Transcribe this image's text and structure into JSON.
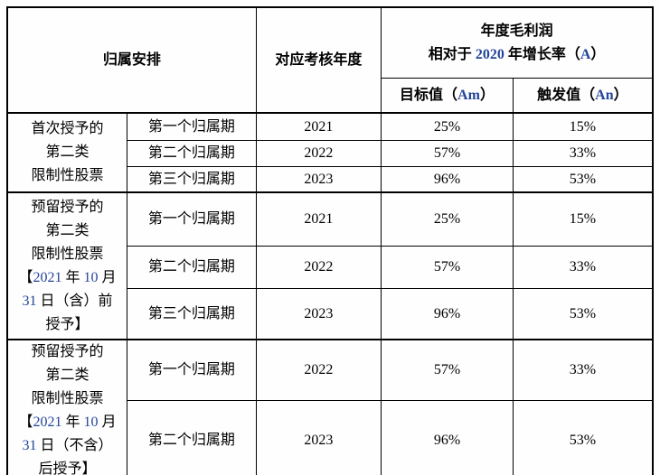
{
  "colors": {
    "text": "#000000",
    "accent_blue": "#24459A",
    "border": "#000000",
    "background": "#fefefe"
  },
  "table": {
    "header": {
      "vesting_arrangement": "归属安排",
      "assessment_year": "对应考核年度",
      "profit_line1": "年度毛利润",
      "profit_line2": [
        {
          "t": "相对于 "
        },
        {
          "t": "2020",
          "b": true
        },
        {
          "t": " 年增长率（"
        },
        {
          "t": "A",
          "b": true
        },
        {
          "t": "）"
        }
      ],
      "target_label": [
        {
          "t": "目标值（"
        },
        {
          "t": "Am",
          "b": true
        },
        {
          "t": "）"
        }
      ],
      "trigger_label": [
        {
          "t": "触发值（"
        },
        {
          "t": "An",
          "b": true
        },
        {
          "t": "）"
        }
      ]
    },
    "groups": [
      {
        "label_lines": [
          [
            {
              "t": "首次授予的"
            }
          ],
          [
            {
              "t": "第二类"
            }
          ],
          [
            {
              "t": "限制性股票"
            }
          ]
        ],
        "rows": [
          {
            "period": "第一个归属期",
            "year": "2021",
            "target": "25%",
            "trigger": "15%"
          },
          {
            "period": "第二个归属期",
            "year": "2022",
            "target": "57%",
            "trigger": "33%"
          },
          {
            "period": "第三个归属期",
            "year": "2023",
            "target": "96%",
            "trigger": "53%"
          }
        ]
      },
      {
        "label_lines": [
          [
            {
              "t": "预留授予的"
            }
          ],
          [
            {
              "t": "第二类"
            }
          ],
          [
            {
              "t": "限制性股票"
            }
          ],
          [
            {
              "t": "【"
            },
            {
              "t": "2021",
              "b": true
            },
            {
              "t": " 年 "
            },
            {
              "t": "10",
              "b": true
            },
            {
              "t": " 月"
            }
          ],
          [
            {
              "t": "31",
              "b": true
            },
            {
              "t": " 日（含）前"
            }
          ],
          [
            {
              "t": "授予】"
            }
          ]
        ],
        "rows": [
          {
            "period": "第一个归属期",
            "year": "2021",
            "target": "25%",
            "trigger": "15%"
          },
          {
            "period": "第二个归属期",
            "year": "2022",
            "target": "57%",
            "trigger": "33%"
          },
          {
            "period": "第三个归属期",
            "year": "2023",
            "target": "96%",
            "trigger": "53%"
          }
        ]
      },
      {
        "label_lines": [
          [
            {
              "t": "预留授予的"
            }
          ],
          [
            {
              "t": "第二类"
            }
          ],
          [
            {
              "t": "限制性股票"
            }
          ],
          [
            {
              "t": "【"
            },
            {
              "t": "2021",
              "b": true
            },
            {
              "t": " 年 "
            },
            {
              "t": "10",
              "b": true
            },
            {
              "t": " 月"
            }
          ],
          [
            {
              "t": "31",
              "b": true
            },
            {
              "t": " 日（不含）"
            }
          ],
          [
            {
              "t": "后授予】"
            }
          ]
        ],
        "rows": [
          {
            "period": "第一个归属期",
            "year": "2022",
            "target": "57%",
            "trigger": "33%"
          },
          {
            "period": "第二个归属期",
            "year": "2023",
            "target": "96%",
            "trigger": "53%"
          }
        ]
      }
    ]
  }
}
